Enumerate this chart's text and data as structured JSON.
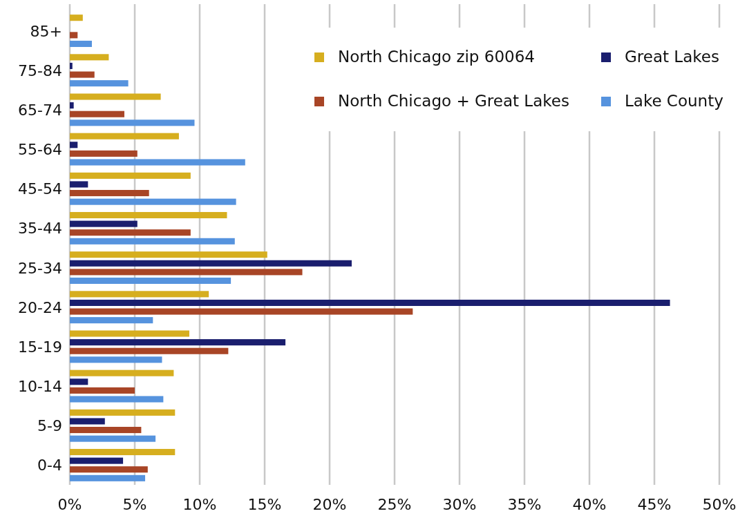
{
  "chart_data": {
    "type": "bar",
    "orientation": "horizontal",
    "categories": [
      "85+",
      "75-84",
      "65-74",
      "55-64",
      "45-54",
      "35-44",
      "25-34",
      "20-24",
      "15-19",
      "10-14",
      "5-9",
      "0-4"
    ],
    "series": [
      {
        "name": "North Chicago zip 60064",
        "color": "#d6ae1f",
        "values": [
          1.0,
          3.0,
          7.0,
          8.4,
          9.3,
          12.1,
          15.2,
          10.7,
          9.2,
          8.0,
          8.1,
          8.1
        ]
      },
      {
        "name": "Great Lakes",
        "color": "#1a1e6e",
        "values": [
          0,
          0.2,
          0.3,
          0.6,
          1.4,
          5.2,
          21.7,
          46.2,
          16.6,
          1.4,
          2.7,
          4.1
        ]
      },
      {
        "name": "North Chicago + Great Lakes",
        "color": "#a84526",
        "values": [
          0.6,
          1.9,
          4.2,
          5.2,
          6.1,
          9.3,
          17.9,
          26.4,
          12.2,
          5.0,
          5.5,
          6.0
        ]
      },
      {
        "name": "Lake County",
        "color": "#5693de",
        "values": [
          1.7,
          4.5,
          9.6,
          13.5,
          12.8,
          12.7,
          12.4,
          6.4,
          7.1,
          7.2,
          6.6,
          5.8
        ]
      }
    ],
    "xlim": [
      0,
      50
    ],
    "xticks": [
      {
        "value": 0,
        "label": "0%"
      },
      {
        "value": 5,
        "label": "5%"
      },
      {
        "value": 10,
        "label": "10%"
      },
      {
        "value": 15,
        "label": "15%"
      },
      {
        "value": 20,
        "label": "20%"
      },
      {
        "value": 25,
        "label": "25%"
      },
      {
        "value": 30,
        "label": "30%"
      },
      {
        "value": 35,
        "label": "35%"
      },
      {
        "value": 40,
        "label": "40%"
      },
      {
        "value": 45,
        "label": "45%"
      },
      {
        "value": 50,
        "label": "50%"
      }
    ],
    "grid": "x",
    "legend": "top right"
  }
}
